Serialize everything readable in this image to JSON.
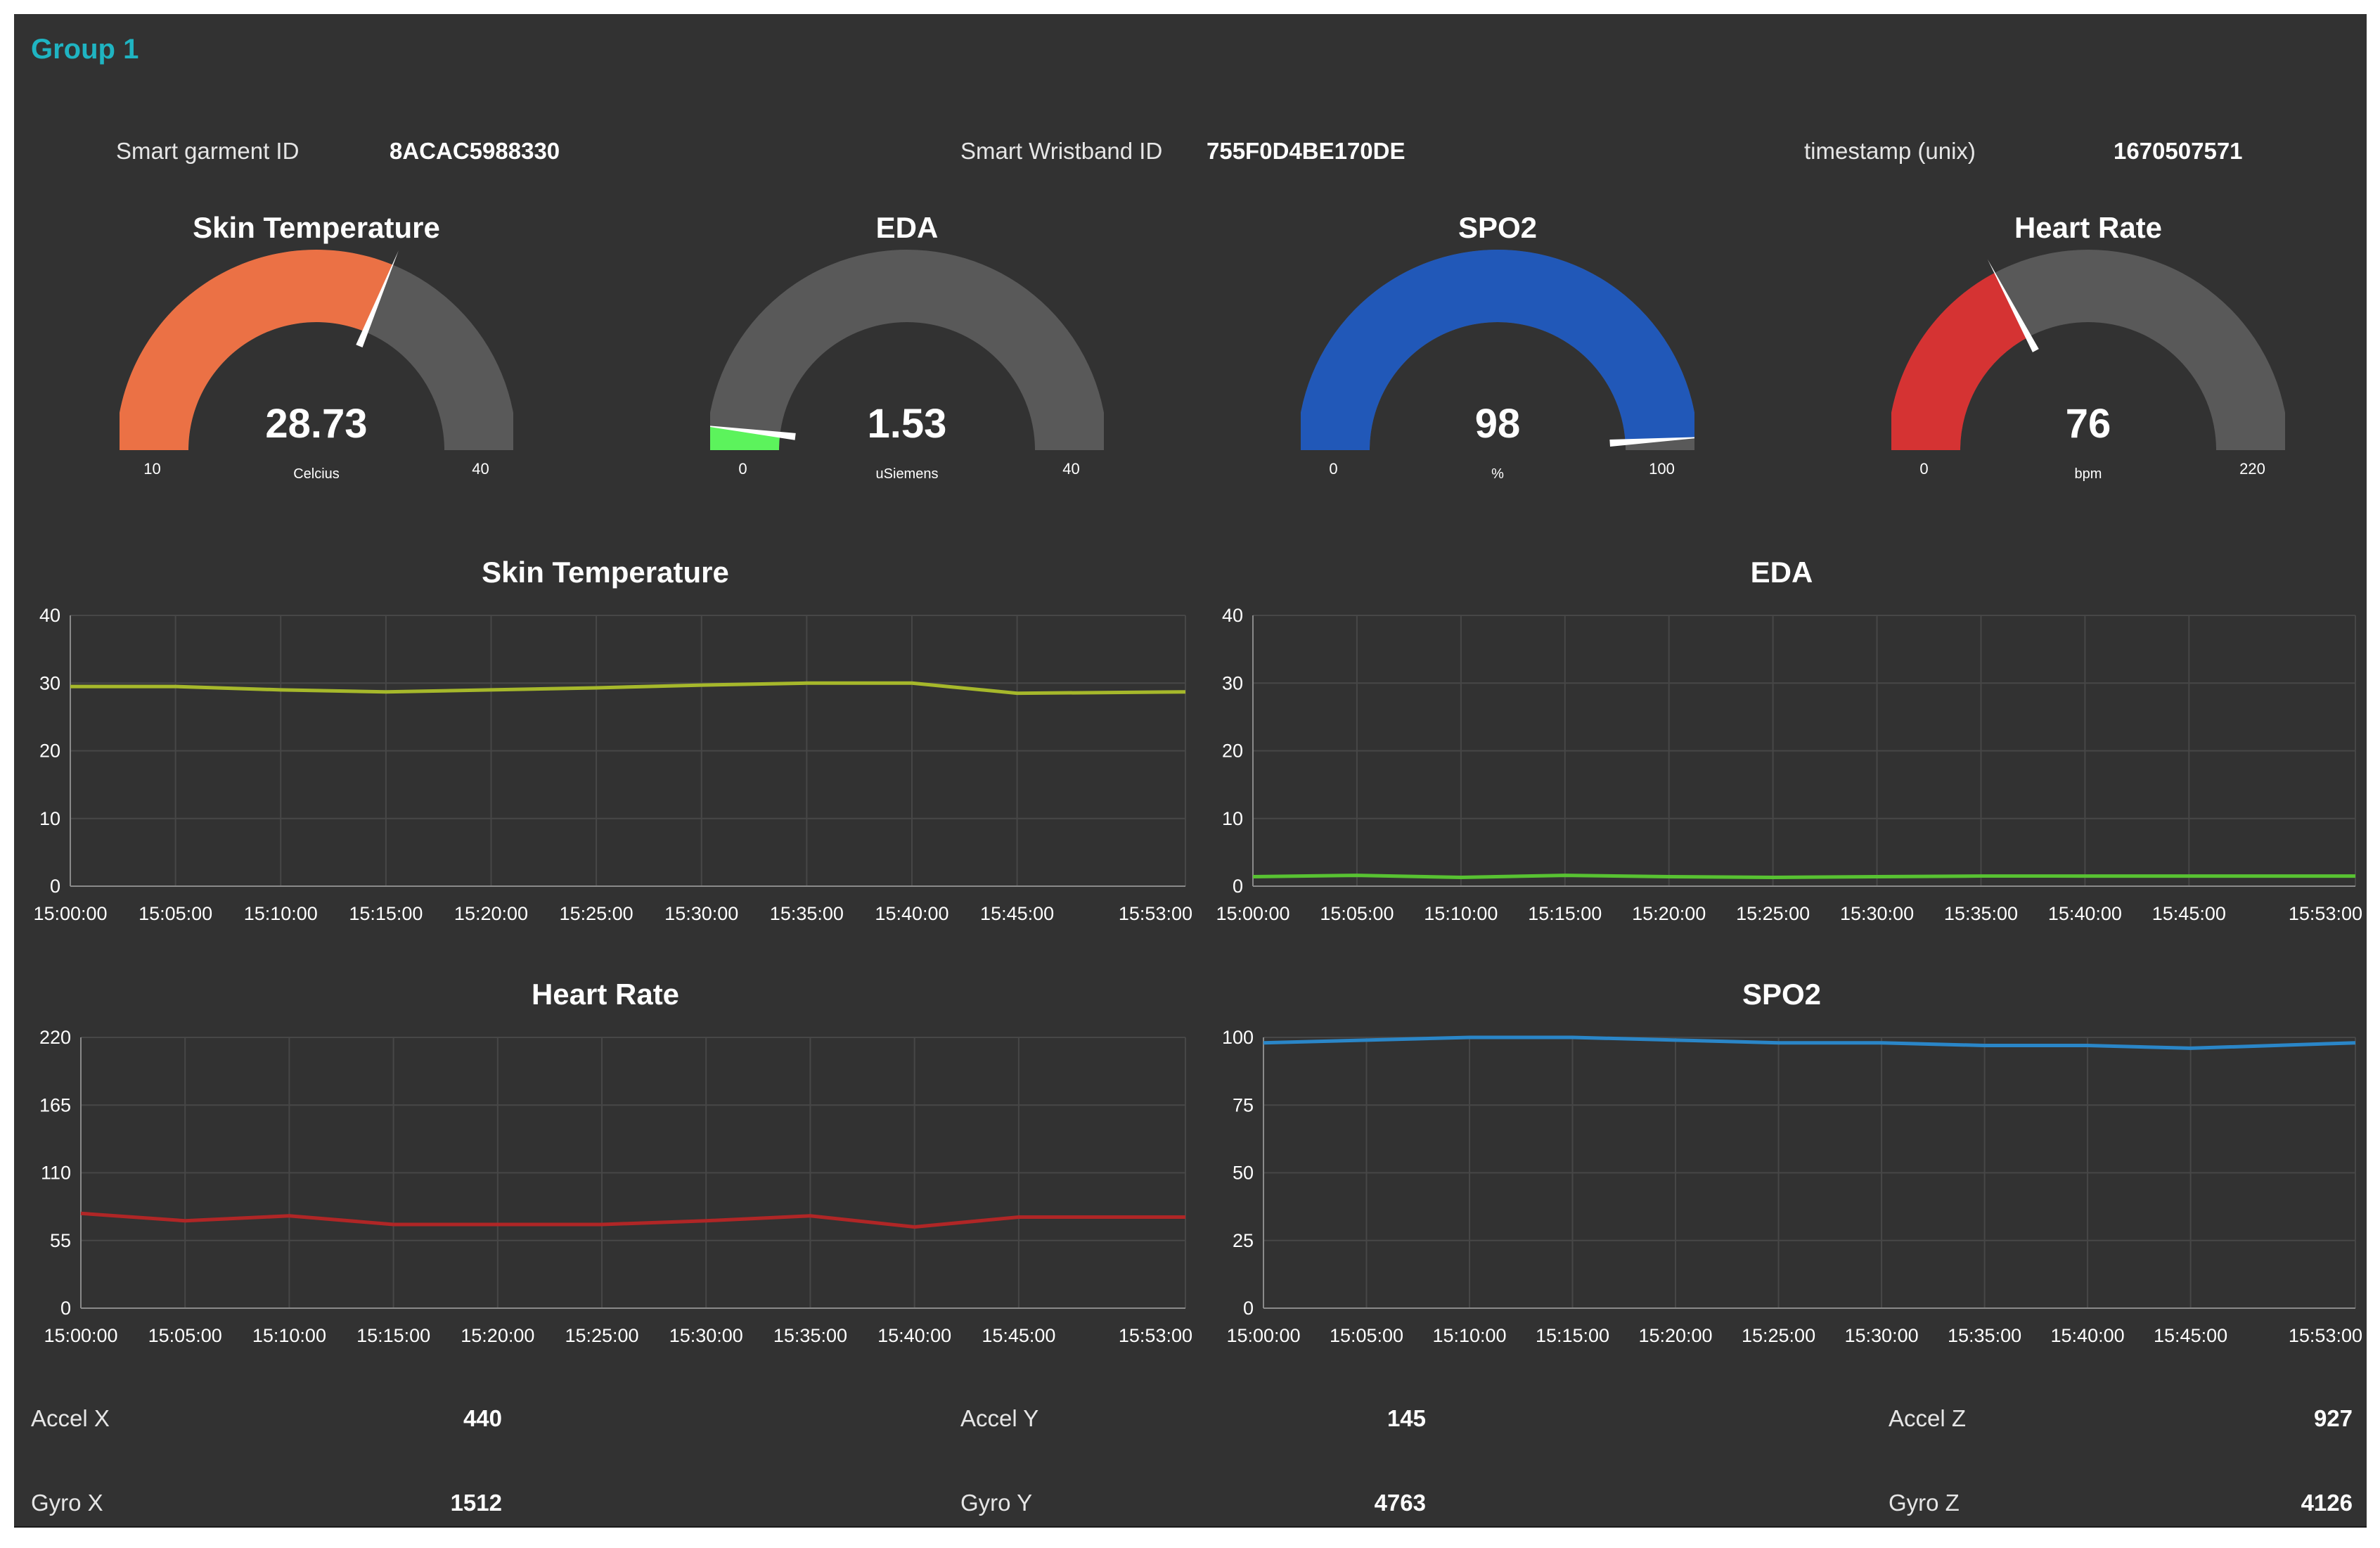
{
  "group": {
    "title": "Group 1"
  },
  "info": {
    "garment_label": "Smart garment ID",
    "garment_value": "8ACAC5988330",
    "wristband_label": "Smart Wristband ID",
    "wristband_value": "755F0D4BE170DE",
    "timestamp_label": "timestamp (unix)",
    "timestamp_value": "1670507571"
  },
  "gauges": [
    {
      "id": "skin-temperature",
      "title": "Skin Temperature",
      "value": 28.73,
      "display": "28.73",
      "min": 10,
      "max": 40,
      "unit": "Celcius",
      "color": "#eb7145",
      "min_label": "10",
      "max_label": "40"
    },
    {
      "id": "eda",
      "title": "EDA",
      "value": 1.53,
      "display": "1.53",
      "min": 0,
      "max": 40,
      "unit": "uSiemens",
      "color": "#5cf35c",
      "min_label": "0",
      "max_label": "40"
    },
    {
      "id": "spo2",
      "title": "SPO2",
      "value": 98,
      "display": "98",
      "min": 0,
      "max": 100,
      "unit": "%",
      "color": "#2158b8",
      "min_label": "0",
      "max_label": "100"
    },
    {
      "id": "heart-rate",
      "title": "Heart Rate",
      "value": 76,
      "display": "76",
      "min": 0,
      "max": 220,
      "unit": "bpm",
      "color": "#d53333",
      "min_label": "0",
      "max_label": "220"
    }
  ],
  "chart_data": [
    {
      "id": "skin-temperature-chart",
      "type": "line",
      "title": "Skin Temperature",
      "ylim": [
        0,
        40
      ],
      "yticks": [
        "0",
        "10",
        "20",
        "30",
        "40"
      ],
      "xticks": [
        "15:00:00",
        "15:05:00",
        "15:10:00",
        "15:15:00",
        "15:20:00",
        "15:25:00",
        "15:30:00",
        "15:35:00",
        "15:40:00",
        "15:45:00",
        "15:53:00"
      ],
      "xtick_minutes": [
        0,
        5,
        10,
        15,
        20,
        25,
        30,
        35,
        40,
        45,
        53
      ],
      "color": "#a6b82b",
      "grid": true,
      "series": [
        {
          "x": [
            "15:00:00",
            "15:05:00",
            "15:10:00",
            "15:15:00",
            "15:20:00",
            "15:25:00",
            "15:30:00",
            "15:35:00",
            "15:40:00",
            "15:45:00",
            "15:53:00"
          ],
          "x_minutes": [
            0,
            5,
            10,
            15,
            20,
            25,
            30,
            35,
            40,
            45,
            53
          ],
          "values": [
            29.5,
            29.5,
            29.0,
            28.7,
            29.0,
            29.3,
            29.7,
            30.0,
            30.0,
            28.5,
            28.7
          ]
        }
      ]
    },
    {
      "id": "eda-chart",
      "type": "line",
      "title": "EDA",
      "ylim": [
        0,
        40
      ],
      "yticks": [
        "0",
        "10",
        "20",
        "30",
        "40"
      ],
      "xticks": [
        "15:00:00",
        "15:05:00",
        "15:10:00",
        "15:15:00",
        "15:20:00",
        "15:25:00",
        "15:30:00",
        "15:35:00",
        "15:40:00",
        "15:45:00",
        "15:53:00"
      ],
      "xtick_minutes": [
        0,
        5,
        10,
        15,
        20,
        25,
        30,
        35,
        40,
        45,
        53
      ],
      "color": "#58c232",
      "grid": true,
      "series": [
        {
          "x": [
            "15:00:00",
            "15:05:00",
            "15:10:00",
            "15:15:00",
            "15:20:00",
            "15:25:00",
            "15:30:00",
            "15:35:00",
            "15:40:00",
            "15:45:00",
            "15:53:00"
          ],
          "x_minutes": [
            0,
            5,
            10,
            15,
            20,
            25,
            30,
            35,
            40,
            45,
            53
          ],
          "values": [
            1.4,
            1.6,
            1.3,
            1.6,
            1.4,
            1.3,
            1.4,
            1.5,
            1.5,
            1.5,
            1.5
          ]
        }
      ]
    },
    {
      "id": "heart-rate-chart",
      "type": "line",
      "title": "Heart Rate",
      "ylim": [
        0,
        220
      ],
      "yticks": [
        "0",
        "55",
        "110",
        "165",
        "220"
      ],
      "xticks": [
        "15:00:00",
        "15:05:00",
        "15:10:00",
        "15:15:00",
        "15:20:00",
        "15:25:00",
        "15:30:00",
        "15:35:00",
        "15:40:00",
        "15:45:00",
        "15:53:00"
      ],
      "xtick_minutes": [
        0,
        5,
        10,
        15,
        20,
        25,
        30,
        35,
        40,
        45,
        53
      ],
      "color": "#b02626",
      "grid": true,
      "series": [
        {
          "x": [
            "15:00:00",
            "15:05:00",
            "15:10:00",
            "15:15:00",
            "15:20:00",
            "15:25:00",
            "15:30:00",
            "15:35:00",
            "15:40:00",
            "15:45:00",
            "15:53:00"
          ],
          "x_minutes": [
            0,
            5,
            10,
            15,
            20,
            25,
            30,
            35,
            40,
            45,
            53
          ],
          "values": [
            77,
            71,
            75,
            68,
            68,
            68,
            71,
            75,
            66,
            74,
            74
          ]
        }
      ]
    },
    {
      "id": "spo2-chart",
      "type": "line",
      "title": "SPO2",
      "ylim": [
        0,
        100
      ],
      "yticks": [
        "0",
        "25",
        "50",
        "75",
        "100"
      ],
      "xticks": [
        "15:00:00",
        "15:05:00",
        "15:10:00",
        "15:15:00",
        "15:20:00",
        "15:25:00",
        "15:30:00",
        "15:35:00",
        "15:40:00",
        "15:45:00",
        "15:53:00"
      ],
      "xtick_minutes": [
        0,
        5,
        10,
        15,
        20,
        25,
        30,
        35,
        40,
        45,
        53
      ],
      "color": "#2a86c8",
      "grid": true,
      "series": [
        {
          "x": [
            "15:00:00",
            "15:05:00",
            "15:10:00",
            "15:15:00",
            "15:20:00",
            "15:25:00",
            "15:30:00",
            "15:35:00",
            "15:40:00",
            "15:45:00",
            "15:53:00"
          ],
          "x_minutes": [
            0,
            5,
            10,
            15,
            20,
            25,
            30,
            35,
            40,
            45,
            53
          ],
          "values": [
            98,
            99,
            100,
            100,
            99,
            98,
            98,
            97,
            97,
            96,
            98
          ]
        }
      ]
    }
  ],
  "sensors": {
    "accel_x_label": "Accel X",
    "accel_x_value": "440",
    "accel_y_label": "Accel Y",
    "accel_y_value": "145",
    "accel_z_label": "Accel Z",
    "accel_z_value": "927",
    "gyro_x_label": "Gyro X",
    "gyro_x_value": "1512",
    "gyro_y_label": "Gyro Y",
    "gyro_y_value": "4763",
    "gyro_z_label": "Gyro Z",
    "gyro_z_value": "4126"
  }
}
